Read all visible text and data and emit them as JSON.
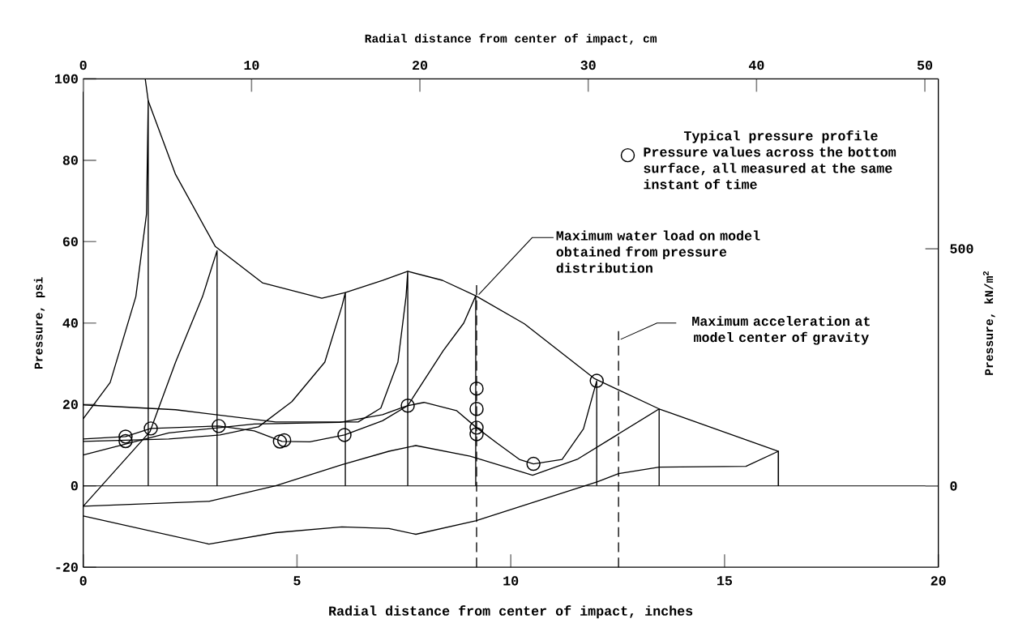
{
  "chart_data": {
    "type": "line",
    "xlabel": "Radial distance from center of impact, inches",
    "ylabel": "Pressure, psi",
    "x2label": "Radial distance from center of impact, cm",
    "y2label": "Pressure, kN/m$^{2}$",
    "legend_title": "Typical pressure profile",
    "legend": "top right",
    "xlim": [
      0,
      20
    ],
    "xticks": [
      0,
      5,
      10,
      15,
      20
    ],
    "ylim": [
      -20,
      100
    ],
    "yticks": [
      -20,
      0,
      20,
      40,
      60,
      80,
      100
    ],
    "x2lim": [
      0,
      50.8
    ],
    "x2ticks": [
      0,
      10,
      20,
      30,
      40,
      50
    ],
    "y2lim": [
      -171,
      858
    ],
    "y2ticks": [
      0,
      500
    ],
    "series": [
      {
        "color": "#000000",
        "x": [
          1.45,
          1.52,
          2.16,
          3.09,
          4.19,
          5.58,
          6.13,
          7.0,
          7.59,
          8.4,
          9.18,
          10.32,
          11.95,
          13.47,
          16.26,
          16.26
        ],
        "values": [
          100,
          94.6,
          76.5,
          58.8,
          49.9,
          46.1,
          47.5,
          50.5,
          52.7,
          50.5,
          46.7,
          39.8,
          26.4,
          18.9,
          8.5,
          0
        ]
      },
      {
        "color": "#000000",
        "x": [
          0,
          0.63,
          1.23,
          1.48,
          1.52,
          1.52
        ],
        "values": [
          16.5,
          25.4,
          46.5,
          66.8,
          94.6,
          0
        ]
      },
      {
        "color": "#000000",
        "x": [
          0,
          1.56,
          2.16,
          2.79,
          3.13,
          3.13
        ],
        "values": [
          -5,
          13.3,
          30.4,
          46.5,
          57.8,
          0
        ]
      },
      {
        "color": "#000000",
        "x": [
          0,
          2.0,
          3.2,
          4.1,
          4.88,
          5.65,
          6.05,
          6.13,
          6.13
        ],
        "values": [
          10.9,
          11.5,
          12.5,
          14.5,
          20.7,
          30.4,
          44.1,
          47.5,
          0
        ]
      },
      {
        "color": "#000000",
        "x": [
          0,
          2.16,
          4.5,
          6.43,
          6.96,
          7.36,
          7.55,
          7.59,
          7.59
        ],
        "values": [
          19.9,
          18.7,
          15.7,
          15.7,
          19.1,
          30.4,
          46.5,
          52.7,
          0
        ]
      },
      {
        "color": "#000000",
        "x": [
          0,
          2.0,
          4.0,
          6.0,
          7.0,
          7.59,
          8.42,
          8.9,
          9.18,
          9.18
        ],
        "values": [
          7.6,
          13.0,
          15.2,
          15.6,
          17.5,
          19.7,
          33.2,
          40.0,
          46.7,
          0
        ]
      },
      {
        "color": "#000000",
        "x": [
          0,
          0.99,
          1.58,
          3.17,
          4.0,
          4.65,
          5.3,
          6.11,
          7.0,
          7.59,
          7.97,
          8.73,
          9.2,
          9.68,
          10.2,
          10.53,
          11.2,
          11.7,
          12.01,
          12.01
        ],
        "values": [
          11.5,
          12.1,
          14.1,
          14.7,
          13.5,
          10.9,
          10.8,
          12.5,
          16.0,
          19.7,
          20.5,
          18.5,
          14.3,
          10.5,
          6.5,
          5.4,
          6.5,
          14.0,
          25.8,
          0
        ]
      },
      {
        "color": "#000000",
        "x": [
          0,
          2.94,
          4.5,
          6.05,
          7.15,
          7.78,
          9.05,
          10.51,
          11.57,
          13.47,
          13.47
        ],
        "values": [
          -5,
          -3.8,
          0,
          5.2,
          8.5,
          9.9,
          7.3,
          2.6,
          6.6,
          18.9,
          0
        ]
      },
      {
        "color": "#000000",
        "x": [
          0,
          2.94,
          4.5,
          6.05,
          7.15,
          7.78,
          9.18,
          12.03,
          12.52,
          13.47,
          15.5,
          16.26,
          16.26
        ],
        "values": [
          -7.4,
          -14.3,
          -11.5,
          -10.1,
          -10.5,
          -11.9,
          -8.6,
          1,
          3,
          4.6,
          4.8,
          8.5,
          0
        ]
      },
      {
        "type": "scatter",
        "marker": "circle",
        "color": "#000000",
        "name": "Pressure values across the bottom surface, all measured at the same instant of time",
        "x": [
          0.99,
          0.99,
          1.58,
          3.17,
          4.6,
          4.7,
          6.11,
          7.59,
          9.2,
          9.2,
          9.2,
          9.2,
          10.53,
          12.01
        ],
        "values": [
          12.1,
          11.0,
          14.1,
          14.7,
          10.9,
          11.2,
          12.5,
          19.7,
          23.9,
          18.9,
          14.3,
          12.7,
          5.4,
          25.8
        ]
      }
    ],
    "ref_lines": [
      {
        "axis": "y",
        "value": 0,
        "color": "#000000",
        "line_style": "solid"
      },
      {
        "axis": "x",
        "value": 9.2,
        "color": "#000000",
        "line_style": "dashed",
        "label": "Maximum water load on model obtained from pressure distribution"
      },
      {
        "axis": "x",
        "value": 12.52,
        "color": "#000000",
        "line_style": "dashed",
        "label": "Maximum acceleration at model center of gravity"
      }
    ]
  }
}
